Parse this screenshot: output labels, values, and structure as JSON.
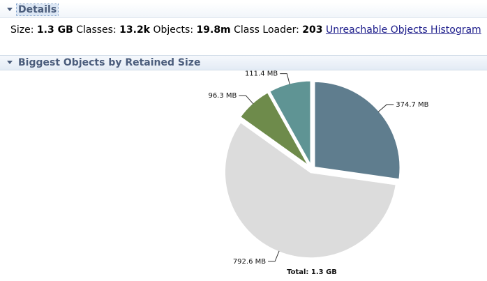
{
  "details": {
    "title": "Details",
    "size_label": "Size:",
    "size": "1.3 GB",
    "classes_label": "Classes:",
    "classes": "13.2k",
    "objects_label": "Objects:",
    "objects": "19.8m",
    "class_loader_label": "Class Loader:",
    "class_loader": "203",
    "link": "Unreachable Objects Histogram"
  },
  "chart_data": {
    "type": "pie",
    "title": "Biggest Objects by Retained Size",
    "values": [
      374.7,
      792.6,
      96.3,
      111.4
    ],
    "value_labels": [
      "374.7 MB",
      "792.6 MB",
      "96.3 MB",
      "111.4 MB"
    ],
    "colors": [
      "#5f7d8e",
      "#dcdcdc",
      "#6e8b4b",
      "#5f9494"
    ],
    "total_label": "Total: 1.3 GB"
  }
}
